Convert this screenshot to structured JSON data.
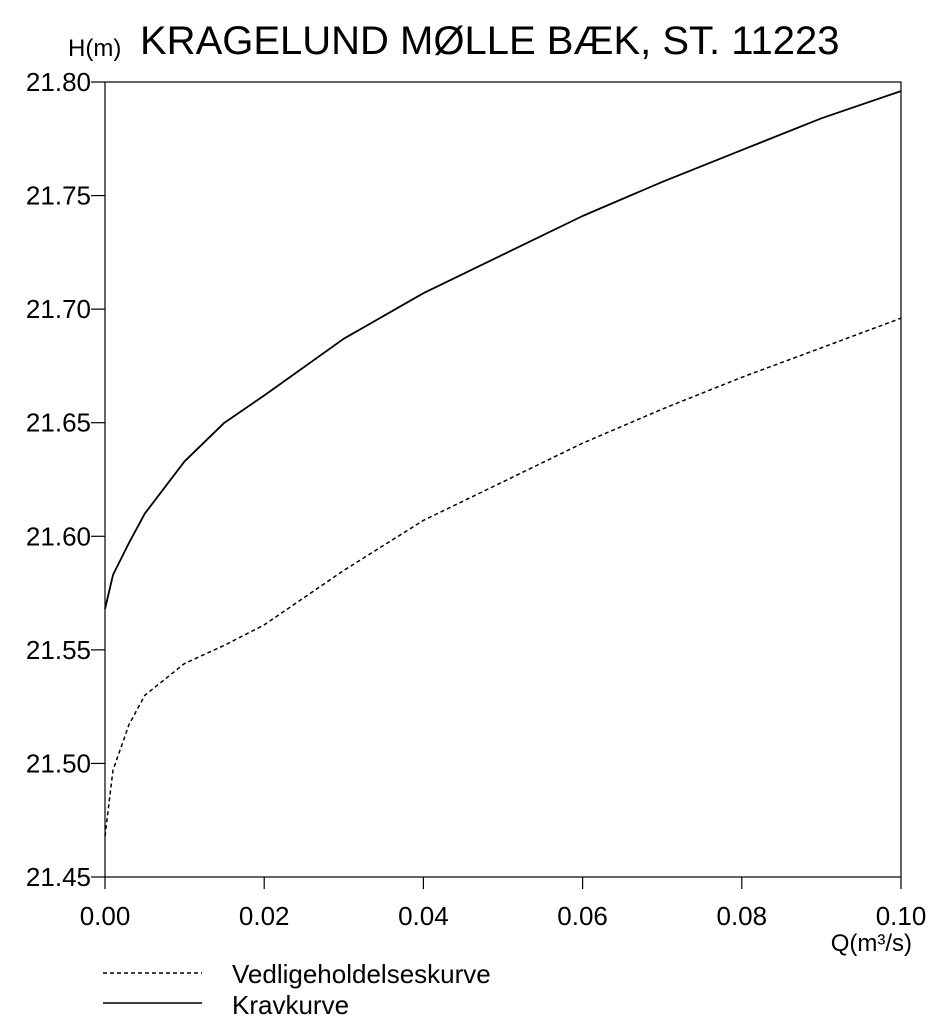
{
  "chart_data": {
    "type": "line",
    "title": "KRAGELUND MØLLE BÆK, ST. 11223",
    "xlabel": "Q(m³/s)",
    "ylabel": "H(m)",
    "xlim": [
      0.0,
      0.1
    ],
    "ylim": [
      21.45,
      21.8
    ],
    "x_ticks": [
      "0.00",
      "0.02",
      "0.04",
      "0.06",
      "0.08",
      "0.10"
    ],
    "y_ticks": [
      "21.45",
      "21.50",
      "21.55",
      "21.60",
      "21.65",
      "21.70",
      "21.75",
      "21.80"
    ],
    "grid": false,
    "legend_position": "bottom-left",
    "series": [
      {
        "name": "Vedligeholdelseskurve",
        "style": "dashed",
        "color": "#000000",
        "points": [
          [
            0.0,
            21.468
          ],
          [
            0.001,
            21.497
          ],
          [
            0.003,
            21.517
          ],
          [
            0.005,
            21.53
          ],
          [
            0.01,
            21.544
          ],
          [
            0.015,
            21.552
          ],
          [
            0.02,
            21.561
          ],
          [
            0.03,
            21.585
          ],
          [
            0.04,
            21.607
          ],
          [
            0.05,
            21.624
          ],
          [
            0.06,
            21.641
          ],
          [
            0.07,
            21.656
          ],
          [
            0.08,
            21.67
          ],
          [
            0.09,
            21.683
          ],
          [
            0.1,
            21.696
          ]
        ]
      },
      {
        "name": "Kravkurve",
        "style": "solid",
        "color": "#000000",
        "points": [
          [
            0.0,
            21.568
          ],
          [
            0.001,
            21.583
          ],
          [
            0.003,
            21.597
          ],
          [
            0.005,
            21.61
          ],
          [
            0.01,
            21.633
          ],
          [
            0.015,
            21.65
          ],
          [
            0.02,
            21.662
          ],
          [
            0.03,
            21.687
          ],
          [
            0.04,
            21.707
          ],
          [
            0.05,
            21.724
          ],
          [
            0.06,
            21.741
          ],
          [
            0.07,
            21.756
          ],
          [
            0.08,
            21.77
          ],
          [
            0.09,
            21.784
          ],
          [
            0.1,
            21.796
          ]
        ]
      }
    ]
  }
}
